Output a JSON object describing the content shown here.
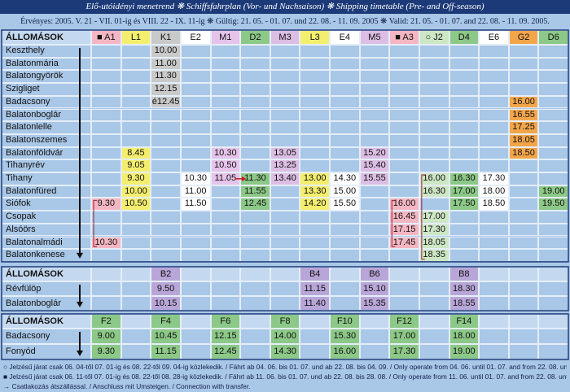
{
  "header": {
    "title": "Elő-utóidényi menetrend ❋ Schiffsfahrplan (Vor- und Nachsaison) ❋ Shipping timetable (Pre- and Off-season)",
    "validity": "Érvényes: 2005. V. 21 - VII. 01-ig és VIII. 22 - IX. 11-ig ❋ Gültig: 21. 05. - 01. 07. und 22. 08. - 11. 09. 2005 ❋ Valid: 21. 05. - 01. 07. and 22. 08. - 11. 09. 2005."
  },
  "table1": {
    "header": "ÁLLOMÁSOK",
    "columns": [
      {
        "label": "■ A1",
        "color": "#f4b6c2"
      },
      {
        "label": "L1",
        "color": "#f4ee6e"
      },
      {
        "label": "K1",
        "color": "#c9c9c9"
      },
      {
        "label": "E2",
        "color": "#ffffff"
      },
      {
        "label": "M1",
        "color": "#e6c3ea"
      },
      {
        "label": "D2",
        "color": "#8cc887"
      },
      {
        "label": "M3",
        "color": "#dcbde3"
      },
      {
        "label": "L3",
        "color": "#f4ee6e"
      },
      {
        "label": "E4",
        "color": "#ffffff"
      },
      {
        "label": "M5",
        "color": "#dcbde3"
      },
      {
        "label": "■ A3",
        "color": "#f4b6c2"
      },
      {
        "label": "○ J2",
        "color": "#cde6c4"
      },
      {
        "label": "D4",
        "color": "#8cc887"
      },
      {
        "label": "E6",
        "color": "#ffffff"
      },
      {
        "label": "G2",
        "color": "#f3a54a"
      },
      {
        "label": "D6",
        "color": "#8cc887"
      }
    ],
    "rows": [
      {
        "station": "Keszthely",
        "cells": [
          null,
          null,
          "10.00",
          null,
          null,
          null,
          null,
          null,
          null,
          null,
          null,
          null,
          null,
          null,
          null,
          null
        ]
      },
      {
        "station": "Balatonmária",
        "cells": [
          null,
          null,
          "11.00",
          null,
          null,
          null,
          null,
          null,
          null,
          null,
          null,
          null,
          null,
          null,
          null,
          null
        ]
      },
      {
        "station": "Balatongyörök",
        "cells": [
          null,
          null,
          "11.30",
          null,
          null,
          null,
          null,
          null,
          null,
          null,
          null,
          null,
          null,
          null,
          null,
          null
        ]
      },
      {
        "station": "Szigliget",
        "cells": [
          null,
          null,
          "12.15",
          null,
          null,
          null,
          null,
          null,
          null,
          null,
          null,
          null,
          null,
          null,
          null,
          null
        ]
      },
      {
        "station": "Badacsony",
        "cells": [
          null,
          null,
          "é12.45",
          null,
          null,
          null,
          null,
          null,
          null,
          null,
          null,
          null,
          null,
          null,
          "16.00",
          null
        ]
      },
      {
        "station": "Balatonboglár",
        "cells": [
          null,
          null,
          null,
          null,
          null,
          null,
          null,
          null,
          null,
          null,
          null,
          null,
          null,
          null,
          "16.55",
          null
        ]
      },
      {
        "station": "Balatonlelle",
        "cells": [
          null,
          null,
          null,
          null,
          null,
          null,
          null,
          null,
          null,
          null,
          null,
          null,
          null,
          null,
          "17.25",
          null
        ]
      },
      {
        "station": "Balatonszemes",
        "cells": [
          null,
          null,
          null,
          null,
          null,
          null,
          null,
          null,
          null,
          null,
          null,
          null,
          null,
          null,
          "18.05",
          null
        ]
      },
      {
        "station": "Balatonföldvár",
        "cells": [
          null,
          "8.45",
          null,
          null,
          "10.30",
          null,
          "13.05",
          null,
          null,
          "15.20",
          null,
          null,
          null,
          null,
          "18.50",
          null
        ]
      },
      {
        "station": "Tihanyrév",
        "cells": [
          null,
          "9.05",
          null,
          null,
          "10.50",
          null,
          "13.25",
          null,
          null,
          "15.40",
          null,
          null,
          null,
          null,
          null,
          null
        ]
      },
      {
        "station": "Tihany",
        "cells": [
          null,
          "9.30",
          null,
          "10.30",
          "11.05",
          "11.30",
          "13.40",
          "13.00",
          "14.30",
          "15.55",
          null,
          "16.00",
          "16.30",
          "17.30",
          null,
          null
        ]
      },
      {
        "station": "Balatonfüred",
        "cells": [
          null,
          "10.00",
          null,
          "11.00",
          null,
          "11.55",
          null,
          "13.30",
          "15.00",
          null,
          null,
          "16.30",
          "17.00",
          "18.00",
          null,
          "19.00"
        ]
      },
      {
        "station": "Siófok",
        "cells": [
          "9.30",
          "10.50",
          null,
          "11.50",
          null,
          "12.45",
          null,
          "14.20",
          "15.50",
          null,
          "16.00",
          null,
          "17.50",
          "18.50",
          null,
          "19.50"
        ]
      },
      {
        "station": "Csopak",
        "cells": [
          null,
          null,
          null,
          null,
          null,
          null,
          null,
          null,
          null,
          null,
          "16.45",
          "17.00",
          null,
          null,
          null,
          null
        ]
      },
      {
        "station": "Alsóörs",
        "cells": [
          null,
          null,
          null,
          null,
          null,
          null,
          null,
          null,
          null,
          null,
          "17.15",
          "17.30",
          null,
          null,
          null,
          null
        ]
      },
      {
        "station": "Balatonalmádi",
        "cells": [
          "10.30",
          null,
          null,
          null,
          null,
          null,
          null,
          null,
          null,
          null,
          "17.45",
          "18.05",
          null,
          null,
          null,
          null
        ]
      },
      {
        "station": "Balatonkenese",
        "cells": [
          null,
          null,
          null,
          null,
          null,
          null,
          null,
          null,
          null,
          null,
          null,
          "18.35",
          null,
          null,
          null,
          null
        ]
      }
    ]
  },
  "table2": {
    "header": "ÁLLOMÁSOK",
    "columns": [
      null,
      null,
      {
        "label": "B2",
        "color": "#b9a6d8"
      },
      null,
      null,
      null,
      null,
      {
        "label": "B4",
        "color": "#b9a6d8"
      },
      null,
      {
        "label": "B6",
        "color": "#b9a6d8"
      },
      null,
      null,
      {
        "label": "B8",
        "color": "#b9a6d8"
      },
      null,
      null,
      null
    ],
    "rows": [
      {
        "station": "Révfülöp",
        "cells": [
          null,
          null,
          "9.50",
          null,
          null,
          null,
          null,
          "11.15",
          null,
          "15.10",
          null,
          null,
          "18.30",
          null,
          null,
          null
        ]
      },
      {
        "station": "Balatonboglár",
        "cells": [
          null,
          null,
          "10.15",
          null,
          null,
          null,
          null,
          "11.40",
          null,
          "15.35",
          null,
          null,
          "18.55",
          null,
          null,
          null
        ]
      }
    ]
  },
  "table3": {
    "header": "ÁLLOMÁSOK",
    "columns": [
      {
        "label": "F2",
        "color": "#8cc887"
      },
      null,
      {
        "label": "F4",
        "color": "#8cc887"
      },
      null,
      {
        "label": "F6",
        "color": "#8cc887"
      },
      null,
      {
        "label": "F8",
        "color": "#8cc887"
      },
      null,
      {
        "label": "F10",
        "color": "#8cc887"
      },
      null,
      {
        "label": "F12",
        "color": "#8cc887"
      },
      null,
      {
        "label": "F14",
        "color": "#8cc887"
      },
      null,
      null,
      null
    ],
    "rows": [
      {
        "station": "Badacsony",
        "cells": [
          "9.00",
          null,
          "10.45",
          null,
          "12.15",
          null,
          "14.00",
          null,
          "15.30",
          null,
          "17.00",
          null,
          "18.00",
          null,
          null,
          null
        ]
      },
      {
        "station": "Fonyód",
        "cells": [
          "9.30",
          null,
          "11.15",
          null,
          "12.45",
          null,
          "14.30",
          null,
          "16.00",
          null,
          "17.30",
          null,
          "19.00",
          null,
          null,
          null
        ]
      }
    ]
  },
  "footnotes": [
    "○ Jelzésű járat csak 06. 04-től 07. 01-ig és 08. 22-től 09. 04-ig közlekedik. / Fährt ab 04. 06. bis 01. 07. und ab 22. 08. bis 04. 09. / Only operate from 04. 06. until 01. 07. and from 22. 08. until 04. 09.",
    "■ Jelzésű járat csak 06. 11-től 07. 01-ig és 08. 22-től 08. 28-ig közlekedik. / Fährt ab 11. 06. bis 01. 07. und ab 22. 08. bis 28. 08. / Only operate from 11. 06. until 01. 07. and from 22. 08. until 28. 08.",
    "→ Csatlakozás átszállással. / Anschluss mit Umsteigen. / Connection with transfer."
  ]
}
